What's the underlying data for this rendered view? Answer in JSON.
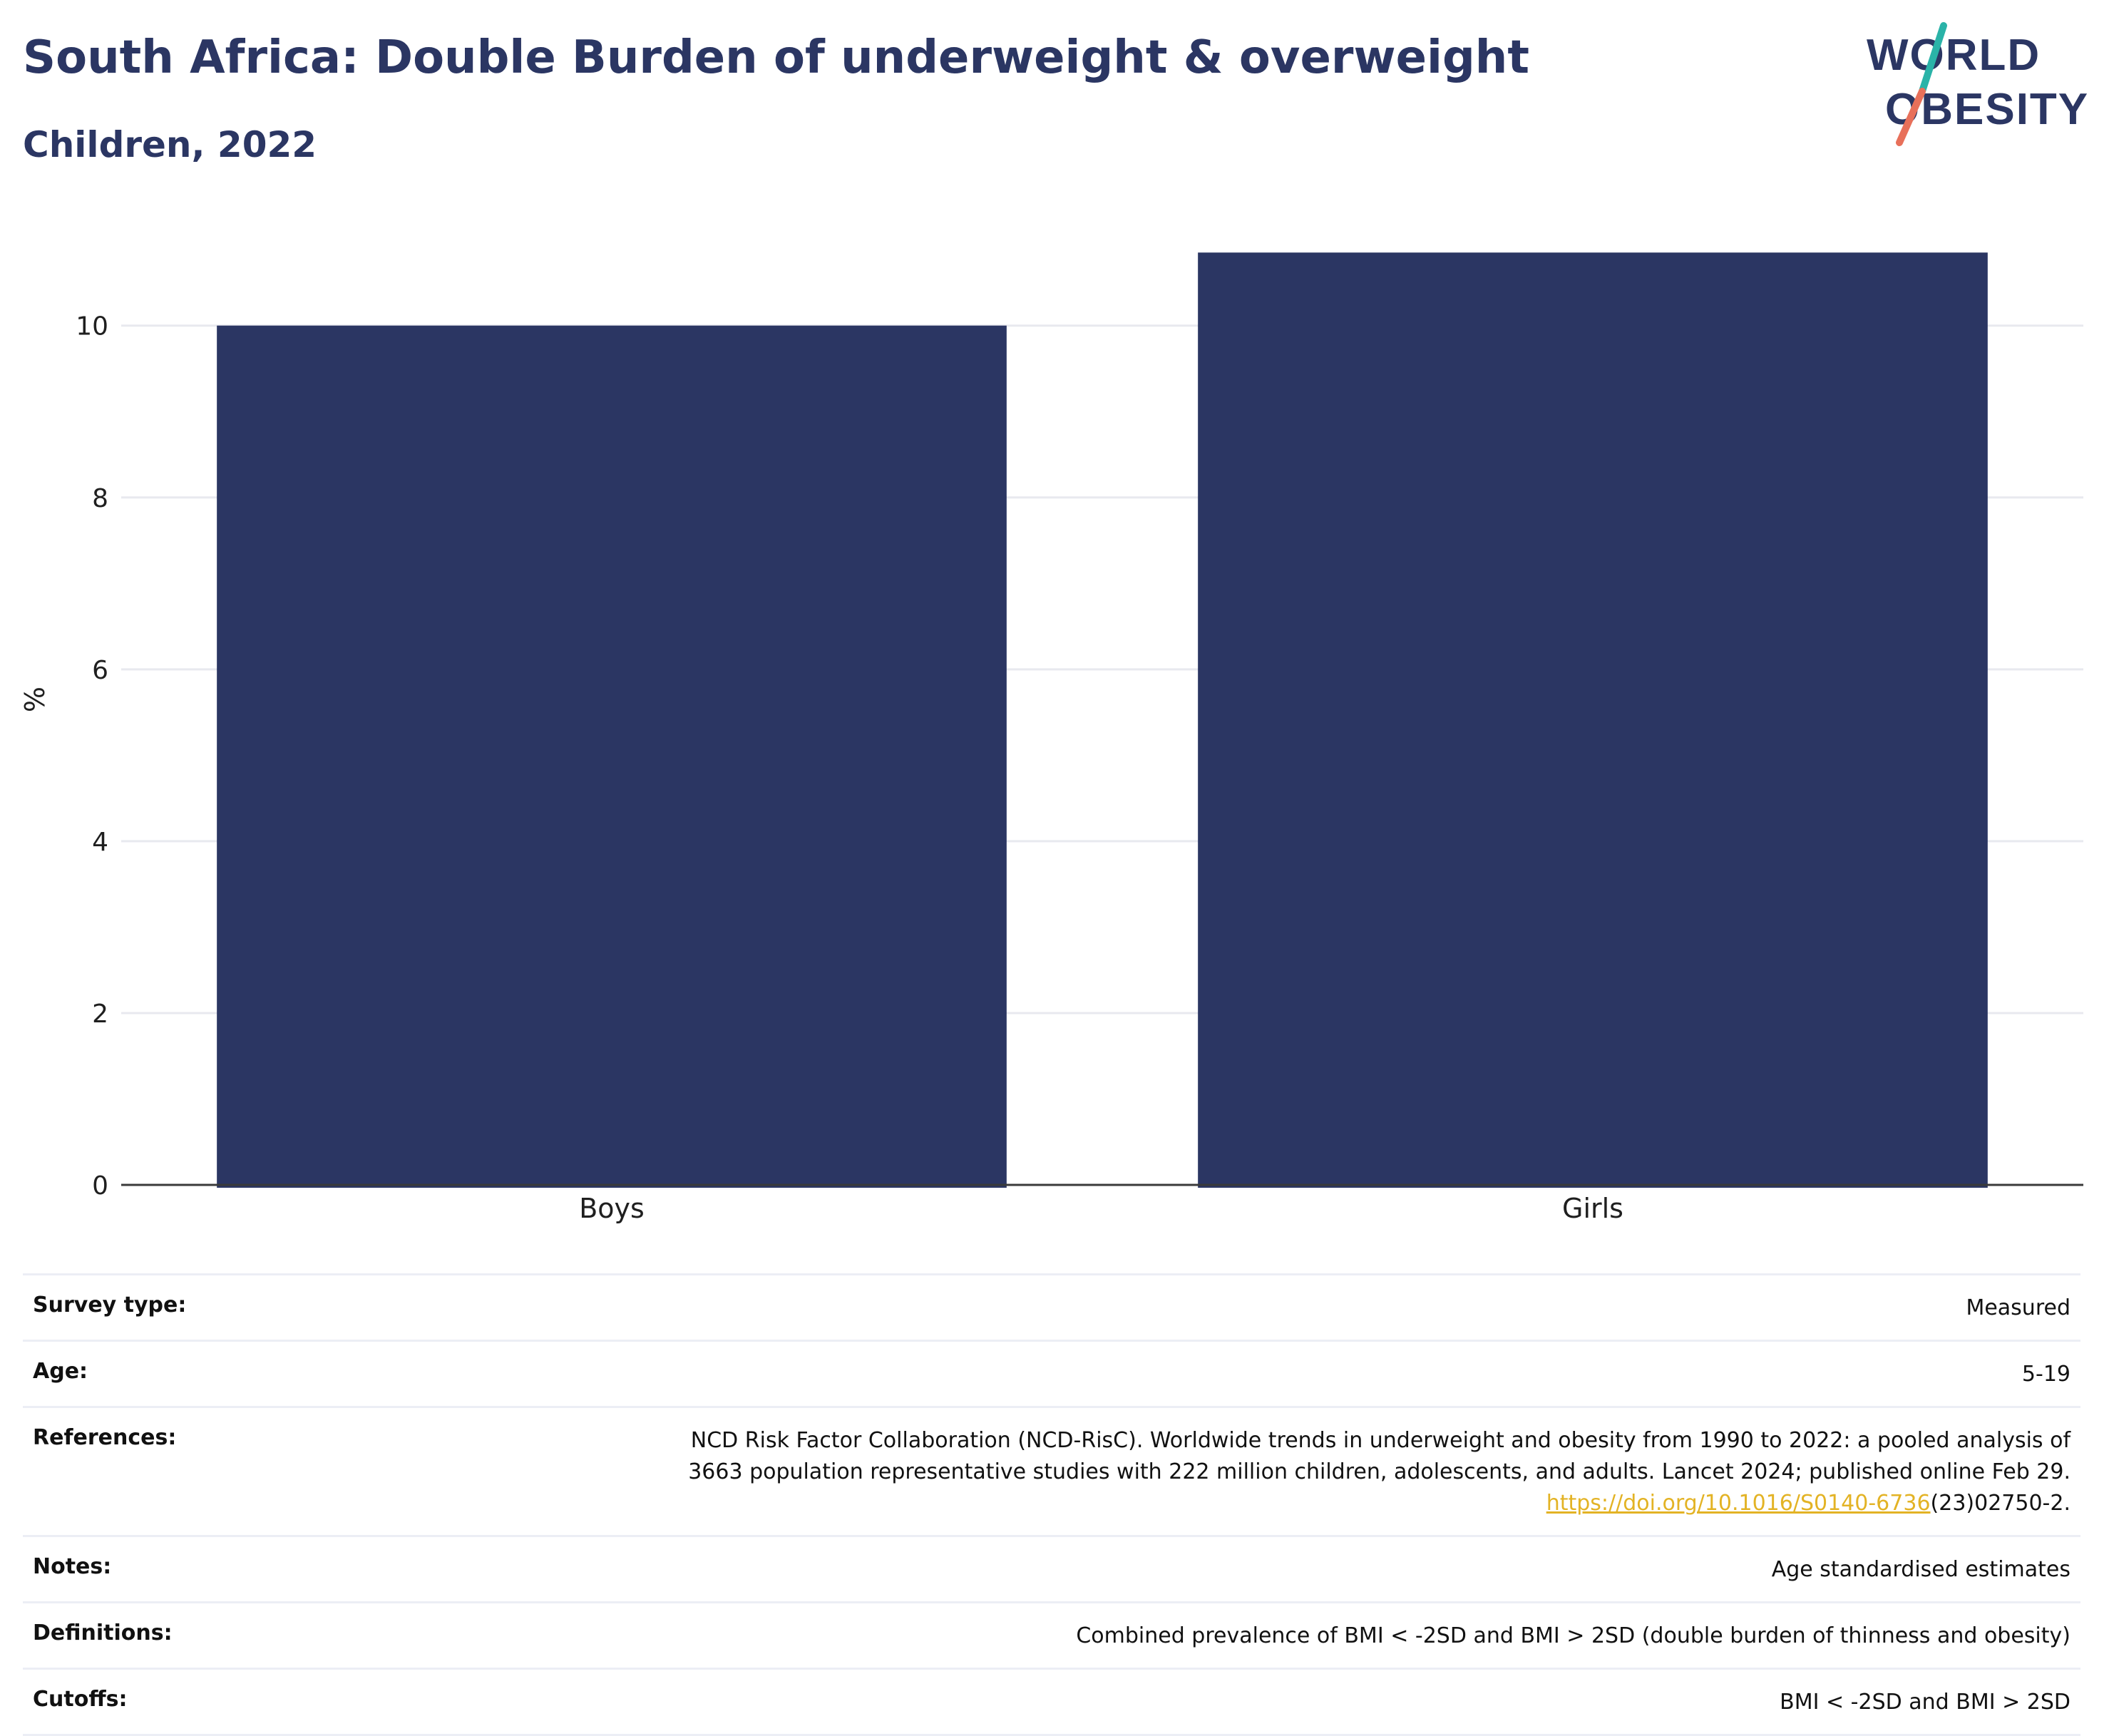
{
  "header": {
    "title": "South Africa: Double Burden of underweight & overweight",
    "subtitle": "Children, 2022"
  },
  "logo": {
    "line1": "WORLD",
    "line2": "OBESITY",
    "text_color": "#2b3663",
    "slash_top_color": "#2ab3a8",
    "slash_bottom_color": "#e8705a"
  },
  "chart_data": {
    "type": "bar",
    "categories": [
      "Boys",
      "Girls"
    ],
    "values": [
      10.0,
      10.85
    ],
    "title": "",
    "xlabel": "",
    "ylabel": "%",
    "ylim": [
      0,
      11.3
    ],
    "yticks": [
      0,
      2,
      4,
      6,
      8,
      10
    ],
    "grid": true,
    "legend": "none",
    "bar_color": "#2b3663"
  },
  "meta": {
    "survey_type": {
      "label": "Survey type:",
      "value": "Measured"
    },
    "age": {
      "label": "Age:",
      "value": "5-19"
    },
    "references": {
      "label": "References:",
      "line1": "NCD Risk Factor Collaboration (NCD-RisC). Worldwide trends in underweight and obesity from 1990 to 2022: a pooled analysis of",
      "line2": "3663 population representative studies with 222 million children, adolescents, and adults. Lancet 2024; published online Feb 29.",
      "link": "https://doi.org/10.1016/S0140-6736",
      "link_suffix": "(23)02750-2."
    },
    "notes": {
      "label": "Notes:",
      "value": "Age standardised estimates"
    },
    "definitions": {
      "label": "Definitions:",
      "value": "Combined prevalence of BMI < -2SD and BMI > 2SD (double burden of thinness and obesity)"
    },
    "cutoffs": {
      "label": "Cutoffs:",
      "value": "BMI < -2SD and BMI > 2SD"
    }
  }
}
